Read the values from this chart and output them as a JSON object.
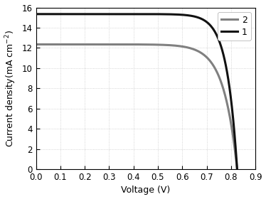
{
  "title": "",
  "xlabel": "Voltage (V)",
  "ylabel": "Current density(mA cm$^{-2}$)",
  "xlim": [
    0.0,
    0.9
  ],
  "ylim": [
    0,
    16
  ],
  "xticks": [
    0.0,
    0.1,
    0.2,
    0.3,
    0.4,
    0.5,
    0.6,
    0.7,
    0.8,
    0.9
  ],
  "yticks": [
    0,
    2,
    4,
    6,
    8,
    10,
    12,
    14,
    16
  ],
  "curve1_color": "#111111",
  "curve2_color": "#808080",
  "curve1_label": "1",
  "curve2_label": "2",
  "curve1_jsc": 15.35,
  "curve1_voc": 0.825,
  "curve1_nVt": 0.042,
  "curve2_jsc": 12.35,
  "curve2_voc": 0.825,
  "curve2_nVt": 0.055,
  "background_color": "#ffffff",
  "grid_color": "#c8c8c8",
  "linewidth1": 2.2,
  "linewidth2": 2.2,
  "legend_fontsize": 9,
  "axis_fontsize": 9,
  "tick_fontsize": 8.5
}
